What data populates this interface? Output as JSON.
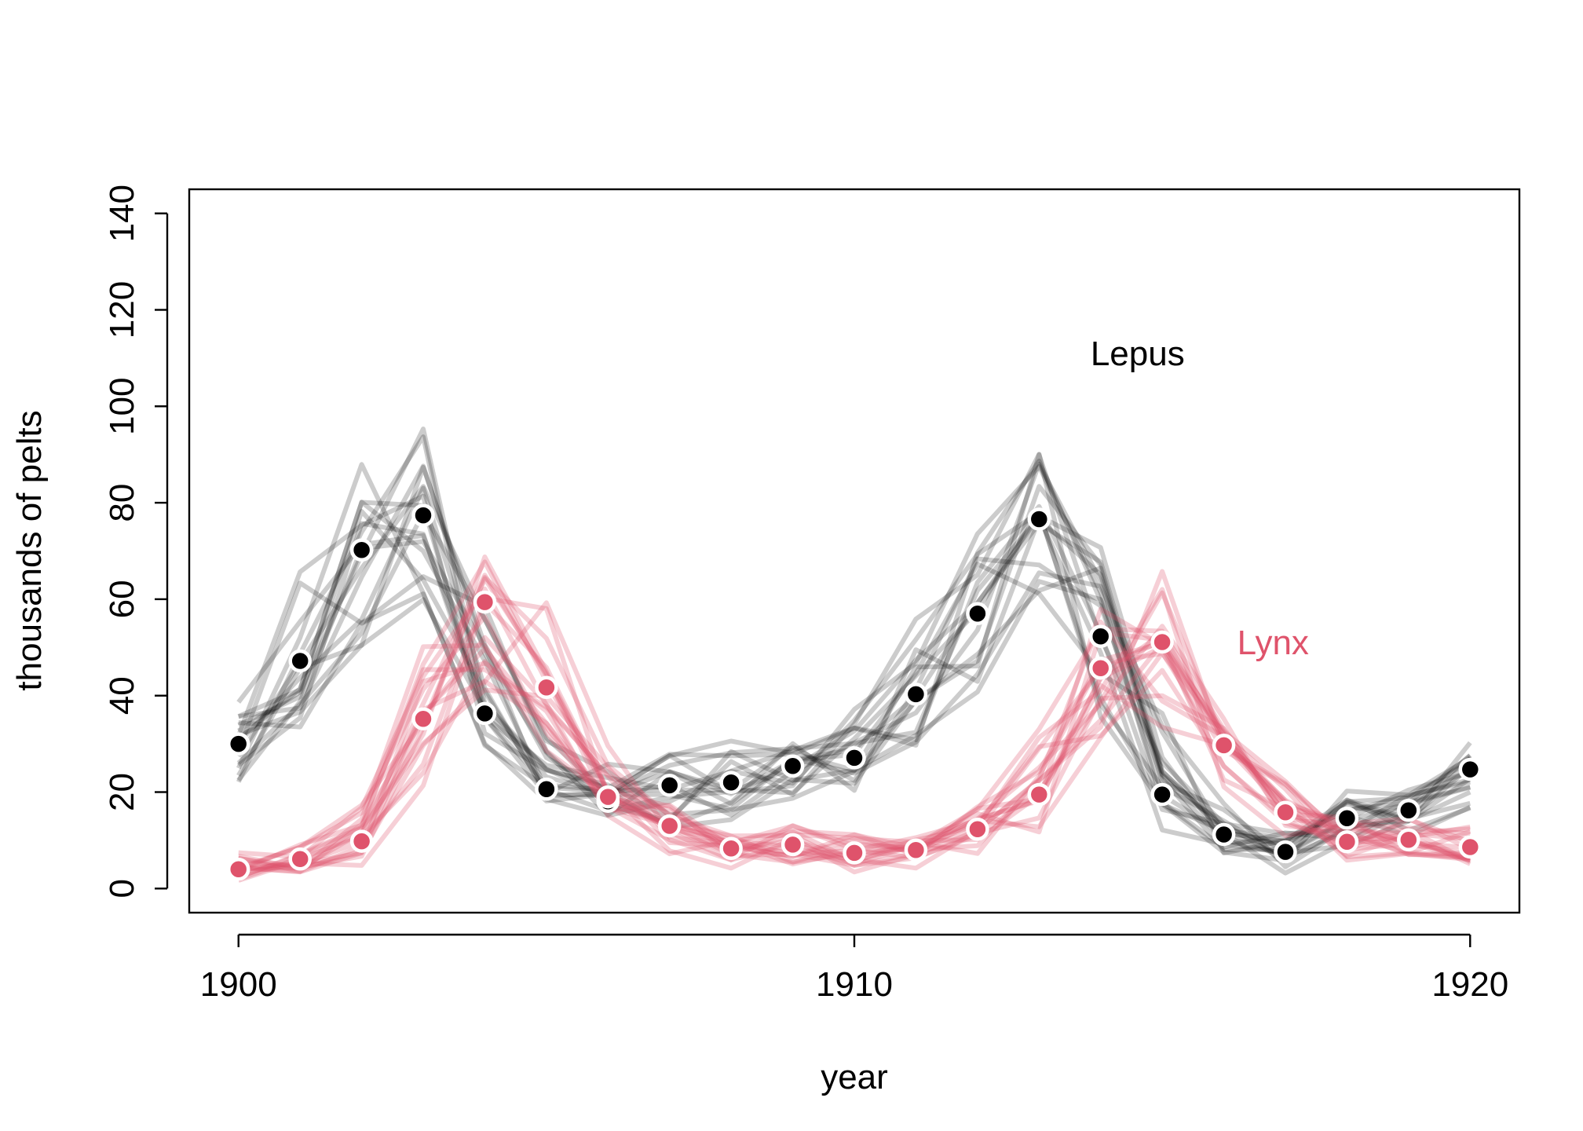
{
  "chart_data": {
    "type": "line",
    "title": "",
    "xlabel": "year",
    "ylabel": "thousands of pelts",
    "xlim": [
      1899.2,
      1920.8
    ],
    "ylim": [
      -5,
      145
    ],
    "xticks": [
      1900,
      1910,
      1920
    ],
    "yticks": [
      0,
      20,
      40,
      60,
      80,
      100,
      120,
      140
    ],
    "grid": false,
    "x": [
      1900,
      1901,
      1902,
      1903,
      1904,
      1905,
      1906,
      1907,
      1908,
      1909,
      1910,
      1911,
      1912,
      1913,
      1914,
      1915,
      1916,
      1917,
      1918,
      1919,
      1920
    ],
    "series": [
      {
        "name": "Lepus",
        "color": "#000000",
        "values": [
          30,
          47.2,
          70.2,
          77.4,
          36.3,
          20.6,
          18.1,
          21.4,
          22,
          25.4,
          27.1,
          40.3,
          57,
          76.6,
          52.3,
          19.5,
          11.2,
          7.6,
          14.6,
          16.2,
          24.7
        ]
      },
      {
        "name": "Lynx",
        "color": "#DF536B",
        "values": [
          4,
          6.1,
          9.8,
          35.2,
          59.4,
          41.7,
          19,
          13,
          8.3,
          9.1,
          7.4,
          8,
          12.3,
          19.5,
          45.7,
          51.1,
          29.7,
          15.8,
          9.7,
          10.1,
          8.6
        ]
      }
    ],
    "annotations": [
      {
        "text": "Lepus",
        "series": "Lepus",
        "x": 1914.6,
        "y": 111
      },
      {
        "text": "Lynx",
        "series": "Lynx",
        "x": 1916.8,
        "y": 51
      }
    ]
  }
}
